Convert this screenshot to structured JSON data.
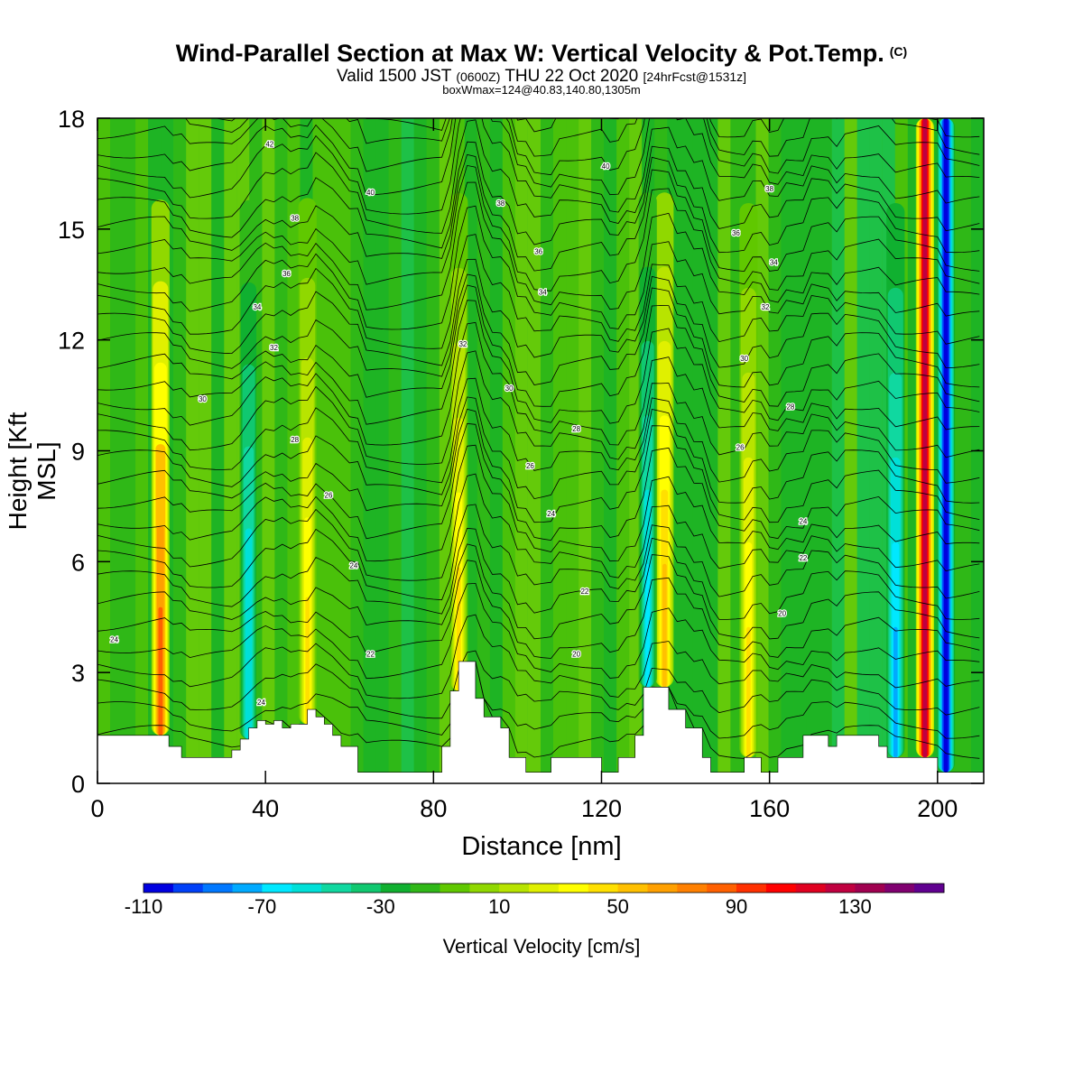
{
  "header": {
    "title": "Wind-Parallel Section at Max W: Vertical Velocity & Pot.Temp.",
    "copyright": "(C)",
    "valid_prefix": "Valid 1500 JST",
    "valid_utc": "(0600Z)",
    "valid_date": "THU 22 Oct 2020",
    "forecast": "[24hrFcst@1531z]",
    "box_info": "boxWmax=124@40.83,140.80,1305m"
  },
  "chart_data": {
    "type": "heatmap",
    "xlabel": "Distance [nm]",
    "ylabel": "Height [Kft MSL]",
    "xlim": [
      0,
      211
    ],
    "ylim": [
      0,
      18
    ],
    "x_ticks": [
      0,
      40,
      80,
      120,
      160,
      200
    ],
    "y_ticks": [
      0,
      3,
      6,
      9,
      12,
      15,
      18
    ],
    "colorbar": {
      "title": "Vertical Velocity [cm/s]",
      "levels_start": -110,
      "levels_step": 10,
      "tick_labels": [
        "-110",
        "-70",
        "-30",
        "10",
        "50",
        "90",
        "130"
      ],
      "tick_values": [
        -110,
        -70,
        -30,
        10,
        50,
        90,
        130
      ],
      "colors": [
        "#0000e0",
        "#0040f8",
        "#0078ff",
        "#00aaff",
        "#00e8ff",
        "#00e0d8",
        "#10d8a0",
        "#10c870",
        "#10b030",
        "#30b818",
        "#60c800",
        "#90d800",
        "#b8e400",
        "#e0f000",
        "#ffff00",
        "#ffe000",
        "#ffc000",
        "#ffa000",
        "#ff8000",
        "#ff6000",
        "#ff3000",
        "#ff0000",
        "#e00020",
        "#c00040",
        "#a00050",
        "#800070",
        "#600090"
      ]
    },
    "terrain": {
      "x": [
        0,
        16,
        17,
        20,
        28,
        32,
        34,
        36,
        38,
        40,
        42,
        44,
        46,
        50,
        52,
        54,
        56,
        58,
        62,
        64,
        68,
        72,
        80,
        82,
        84,
        86,
        88,
        90,
        92,
        96,
        98,
        102,
        104,
        108,
        118,
        120,
        124,
        128,
        130,
        134,
        136,
        138,
        140,
        144,
        146,
        150,
        154,
        158,
        160,
        162,
        166,
        168,
        170,
        174,
        176,
        180,
        184,
        186,
        188,
        192,
        196,
        200,
        204,
        211
      ],
      "height_kft": [
        1.3,
        1.3,
        1.0,
        0.7,
        0.7,
        0.9,
        1.2,
        1.5,
        1.7,
        1.6,
        1.7,
        1.5,
        1.6,
        2.0,
        1.8,
        1.6,
        1.3,
        1.0,
        0.3,
        0.3,
        0.3,
        0.3,
        0.3,
        1.0,
        2.5,
        3.3,
        3.3,
        2.3,
        1.8,
        1.5,
        0.7,
        0.3,
        0.3,
        0.7,
        0.7,
        0.3,
        0.7,
        1.3,
        2.6,
        2.6,
        2.0,
        2.0,
        1.5,
        0.7,
        0.3,
        0.3,
        0.7,
        0.3,
        0.3,
        0.7,
        0.7,
        1.3,
        1.3,
        1.0,
        1.3,
        1.3,
        1.3,
        1.0,
        0.7,
        0.7,
        0.7,
        0.3,
        0.3,
        0.3
      ]
    },
    "updraft_columns": [
      {
        "x": 15,
        "peak_cm_s": 85
      },
      {
        "x": 50,
        "peak_cm_s": 45
      },
      {
        "x": 86,
        "peak_cm_s": 40
      },
      {
        "x": 135,
        "peak_cm_s": 50
      },
      {
        "x": 155,
        "peak_cm_s": 45
      },
      {
        "x": 197,
        "peak_cm_s": 124
      }
    ],
    "downdraft_columns": [
      {
        "x": 36,
        "peak_cm_s": -60
      },
      {
        "x": 131,
        "peak_cm_s": -70
      },
      {
        "x": 190,
        "peak_cm_s": -80
      },
      {
        "x": 202,
        "peak_cm_s": -110
      }
    ],
    "isentrope_labels": [
      {
        "x": 41,
        "y": 17.3,
        "text": "42"
      },
      {
        "x": 65,
        "y": 16.0,
        "text": "40"
      },
      {
        "x": 121,
        "y": 16.7,
        "text": "40"
      },
      {
        "x": 47,
        "y": 15.3,
        "text": "38"
      },
      {
        "x": 96,
        "y": 15.7,
        "text": "38"
      },
      {
        "x": 160,
        "y": 16.1,
        "text": "38"
      },
      {
        "x": 45,
        "y": 13.8,
        "text": "36"
      },
      {
        "x": 105,
        "y": 14.4,
        "text": "36"
      },
      {
        "x": 152,
        "y": 14.9,
        "text": "36"
      },
      {
        "x": 38,
        "y": 12.9,
        "text": "34"
      },
      {
        "x": 106,
        "y": 13.3,
        "text": "34"
      },
      {
        "x": 161,
        "y": 14.1,
        "text": "34"
      },
      {
        "x": 42,
        "y": 11.8,
        "text": "32"
      },
      {
        "x": 87,
        "y": 11.9,
        "text": "32"
      },
      {
        "x": 159,
        "y": 12.9,
        "text": "32"
      },
      {
        "x": 25,
        "y": 10.4,
        "text": "30"
      },
      {
        "x": 98,
        "y": 10.7,
        "text": "30"
      },
      {
        "x": 154,
        "y": 11.5,
        "text": "30"
      },
      {
        "x": 47,
        "y": 9.3,
        "text": "28"
      },
      {
        "x": 114,
        "y": 9.6,
        "text": "28"
      },
      {
        "x": 165,
        "y": 10.2,
        "text": "28"
      },
      {
        "x": 55,
        "y": 7.8,
        "text": "26"
      },
      {
        "x": 103,
        "y": 8.6,
        "text": "26"
      },
      {
        "x": 153,
        "y": 9.1,
        "text": "26"
      },
      {
        "x": 61,
        "y": 5.9,
        "text": "24"
      },
      {
        "x": 108,
        "y": 7.3,
        "text": "24"
      },
      {
        "x": 168,
        "y": 7.1,
        "text": "24"
      },
      {
        "x": 4,
        "y": 3.9,
        "text": "24"
      },
      {
        "x": 39,
        "y": 2.2,
        "text": "24"
      },
      {
        "x": 65,
        "y": 3.5,
        "text": "22"
      },
      {
        "x": 116,
        "y": 5.2,
        "text": "22"
      },
      {
        "x": 168,
        "y": 6.1,
        "text": "22"
      },
      {
        "x": 114,
        "y": 3.5,
        "text": "20"
      },
      {
        "x": 163,
        "y": 4.6,
        "text": "20"
      }
    ]
  }
}
